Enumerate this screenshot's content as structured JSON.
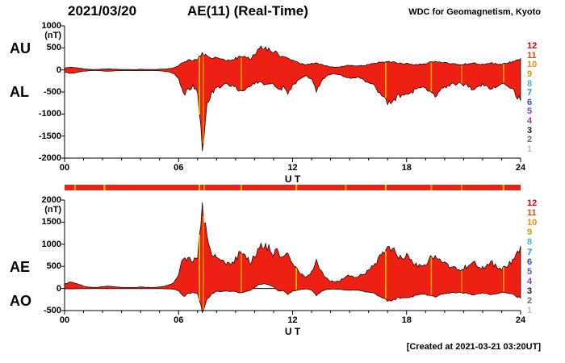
{
  "header": {
    "date": "2021/03/20",
    "title": "AE(11) (Real-Time)",
    "organization": "WDC for Geomagnetism, Kyoto"
  },
  "footer": {
    "created": "[Created at 2021-03-21 03:20UT]"
  },
  "colors": {
    "fill": "#ee2014",
    "axis": "#000000"
  },
  "station_scale": [
    {
      "n": 12,
      "color": "#d80000"
    },
    {
      "n": 11,
      "color": "#e64614"
    },
    {
      "n": 10,
      "color": "#f08c14"
    },
    {
      "n": 9,
      "color": "#cda000"
    },
    {
      "n": 8,
      "color": "#50b4d2"
    },
    {
      "n": 7,
      "color": "#00a0c8"
    },
    {
      "n": 6,
      "color": "#3246d2"
    },
    {
      "n": 5,
      "color": "#6e46d2"
    },
    {
      "n": 4,
      "color": "#aa32be"
    },
    {
      "n": 3,
      "color": "#191919"
    },
    {
      "n": 2,
      "color": "#696969"
    },
    {
      "n": 1,
      "color": "#bebebe"
    }
  ],
  "quality_bar": {
    "marks": [
      {
        "t": 0.55,
        "color": "#ff9900"
      },
      {
        "t": 2.1,
        "color": "#ffcc00"
      },
      {
        "t": 7.1,
        "color": "#ffcc00"
      },
      {
        "t": 7.35,
        "color": "#ff8800"
      },
      {
        "t": 9.3,
        "color": "#ff9900"
      },
      {
        "t": 12.2,
        "color": "#ffcc00"
      },
      {
        "t": 14.8,
        "color": "#ff9900"
      },
      {
        "t": 16.9,
        "color": "#ffcc00"
      },
      {
        "t": 19.3,
        "color": "#ff9900"
      },
      {
        "t": 20.9,
        "color": "#ff8800"
      },
      {
        "t": 23.1,
        "color": "#ffcc00"
      }
    ]
  },
  "chart_data": [
    {
      "type": "area",
      "name": "au-al",
      "title": "AU / AL indices",
      "xlim": [
        0,
        24
      ],
      "dt_hours": 0.25,
      "ylim": [
        -2000,
        1000
      ],
      "yticks": [
        1000,
        500,
        0,
        -500,
        -1000,
        -1500,
        -2000
      ],
      "xticks": [
        0,
        6,
        12,
        18,
        24
      ],
      "xtick_labels": [
        "00",
        "06",
        "12",
        "18",
        "24"
      ],
      "xlabel": "U T",
      "ylabel": "(nT)",
      "series": [
        {
          "name": "AU",
          "values": [
            40,
            60,
            55,
            40,
            25,
            15,
            10,
            10,
            20,
            25,
            20,
            15,
            10,
            10,
            10,
            10,
            15,
            10,
            10,
            10,
            15,
            20,
            30,
            50,
            90,
            180,
            220,
            200,
            260,
            380,
            300,
            260,
            280,
            240,
            200,
            230,
            260,
            300,
            280,
            260,
            340,
            480,
            520,
            460,
            420,
            350,
            300,
            280,
            230,
            180,
            140,
            120,
            140,
            160,
            120,
            90,
            70,
            60,
            70,
            90,
            110,
            100,
            90,
            100,
            120,
            140,
            160,
            180,
            200,
            180,
            160,
            150,
            140,
            130,
            120,
            130,
            150,
            180,
            200,
            180,
            160,
            140,
            130,
            120,
            130,
            140,
            150,
            140,
            130,
            140,
            150,
            140,
            130,
            150,
            180,
            220,
            260
          ]
        },
        {
          "name": "AL",
          "values": [
            -50,
            -80,
            -70,
            -50,
            -30,
            -20,
            -15,
            -15,
            -25,
            -30,
            -25,
            -20,
            -15,
            -15,
            -15,
            -15,
            -20,
            -15,
            -15,
            -15,
            -20,
            -30,
            -50,
            -90,
            -200,
            -550,
            -450,
            -380,
            -500,
            -1750,
            -800,
            -500,
            -420,
            -380,
            -330,
            -360,
            -400,
            -520,
            -420,
            -350,
            -300,
            -280,
            -320,
            -300,
            -340,
            -480,
            -400,
            -560,
            -350,
            -260,
            -180,
            -140,
            -220,
            -480,
            -260,
            -140,
            -100,
            -90,
            -110,
            -160,
            -200,
            -170,
            -180,
            -240,
            -280,
            -360,
            -480,
            -640,
            -780,
            -720,
            -600,
            -560,
            -580,
            -520,
            -420,
            -380,
            -420,
            -520,
            -560,
            -480,
            -400,
            -340,
            -320,
            -300,
            -330,
            -380,
            -430,
            -390,
            -340,
            -380,
            -420,
            -370,
            -320,
            -340,
            -420,
            -560,
            -700
          ]
        }
      ],
      "streaks": [
        {
          "t": 7.1,
          "color": "#ffcc00"
        },
        {
          "t": 7.3,
          "color": "#ff8800"
        },
        {
          "t": 9.3,
          "color": "#ff9900"
        },
        {
          "t": 16.9,
          "color": "#ffcc00"
        },
        {
          "t": 19.3,
          "color": "#ff9900"
        },
        {
          "t": 20.9,
          "color": "#ff8800"
        },
        {
          "t": 23.1,
          "color": "#ffaa00"
        }
      ]
    },
    {
      "type": "area",
      "name": "ae-ao",
      "title": "AE / AO indices",
      "xlim": [
        0,
        24
      ],
      "dt_hours": 0.25,
      "ylim": [
        -500,
        2000
      ],
      "yticks": [
        2000,
        1500,
        1000,
        500,
        0,
        -500
      ],
      "xticks": [
        0,
        6,
        12,
        18,
        24
      ],
      "xtick_labels": [
        "00",
        "06",
        "12",
        "18",
        "24"
      ],
      "xlabel": "U T",
      "ylabel": "(nT)",
      "series": [
        {
          "name": "AE",
          "values": [
            90,
            140,
            125,
            90,
            55,
            35,
            25,
            25,
            45,
            55,
            45,
            35,
            25,
            25,
            25,
            25,
            35,
            25,
            25,
            25,
            35,
            50,
            80,
            140,
            290,
            730,
            670,
            580,
            760,
            1880,
            1100,
            760,
            700,
            620,
            530,
            590,
            660,
            820,
            700,
            610,
            700,
            900,
            1000,
            920,
            800,
            830,
            700,
            840,
            580,
            440,
            320,
            260,
            360,
            640,
            380,
            230,
            170,
            150,
            180,
            250,
            310,
            270,
            270,
            340,
            400,
            500,
            640,
            820,
            980,
            900,
            760,
            710,
            720,
            650,
            540,
            510,
            570,
            700,
            760,
            660,
            560,
            480,
            450,
            420,
            460,
            520,
            580,
            530,
            470,
            520,
            570,
            510,
            450,
            490,
            600,
            780,
            960
          ]
        },
        {
          "name": "AO",
          "values": [
            -5,
            -10,
            -8,
            -5,
            -3,
            -3,
            -3,
            -3,
            -3,
            -3,
            -3,
            -3,
            -3,
            -3,
            -3,
            -3,
            -3,
            -3,
            -3,
            -3,
            -3,
            -5,
            -10,
            -20,
            -55,
            -185,
            -115,
            -90,
            -120,
            -520,
            -250,
            -120,
            -70,
            -70,
            -65,
            -65,
            -70,
            -110,
            -70,
            -45,
            20,
            100,
            100,
            80,
            40,
            -65,
            -50,
            -140,
            -60,
            -40,
            -20,
            -10,
            -40,
            -160,
            -70,
            -25,
            -15,
            -15,
            -20,
            -35,
            -45,
            -35,
            -45,
            -70,
            -80,
            -110,
            -160,
            -230,
            -290,
            -270,
            -220,
            -205,
            -220,
            -195,
            -150,
            -125,
            -135,
            -170,
            -180,
            -150,
            -120,
            -100,
            -95,
            -90,
            -100,
            -120,
            -140,
            -125,
            -105,
            -120,
            -135,
            -115,
            -95,
            -95,
            -120,
            -170,
            -220
          ]
        }
      ],
      "streaks": [
        {
          "t": 7.1,
          "color": "#ffcc00"
        },
        {
          "t": 7.3,
          "color": "#ff8800"
        },
        {
          "t": 9.3,
          "color": "#ff9900"
        },
        {
          "t": 12.2,
          "color": "#ffcc00"
        },
        {
          "t": 16.9,
          "color": "#ffcc00"
        },
        {
          "t": 19.3,
          "color": "#ff9900"
        },
        {
          "t": 20.9,
          "color": "#ff8800"
        },
        {
          "t": 23.1,
          "color": "#ffaa00"
        }
      ]
    }
  ]
}
